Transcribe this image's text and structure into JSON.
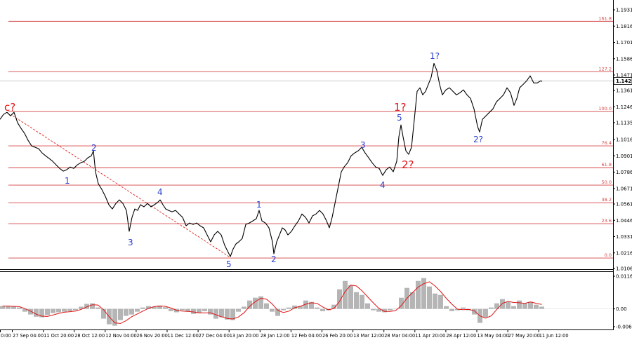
{
  "colors": {
    "price_line": "#000000",
    "fib_line": "#d64545",
    "fib_label": "#d64545",
    "current_price_line": "#c8c8c8",
    "trend_line": "#e02020",
    "histogram": "#b5b5b5",
    "signal": "#e01414",
    "axis_text": "#000000",
    "wave_blue": "#2a3fcf",
    "wave_red": "#e01414"
  },
  "chart_data": {
    "type": "line",
    "title": "",
    "y_ticks": [
      "1.1931",
      "1.1816",
      "1.1701",
      "1.1586",
      "1.1471",
      "1.1361",
      "1.1246",
      "1.1135",
      "1.1016",
      "1.0901",
      "1.0786",
      "1.0671",
      "1.0561",
      "1.0446",
      "1.0331",
      "1.0216",
      "1.0106"
    ],
    "y_range": [
      1.0106,
      1.1931
    ],
    "current_price": "1.1429",
    "x_ticks": [
      "0:00",
      "27 Sep 04:00",
      "11 Oct 20:00",
      "28 Oct 12:00",
      "12 Nov 04:00",
      "26 Nov 20:00",
      "11 Dec 12:00",
      "27 Dec 04:00",
      "13 Jan 20:00",
      "28 Jan 12:00",
      "12 Feb 04:00",
      "26 Feb 20:00",
      "13 Mar 12:00",
      "28 Mar 04:00",
      "11 Apr 20:00",
      "28 Apr 12:00",
      "13 May 04:00",
      "27 May 20:00",
      "11 Jun 12:00"
    ],
    "series": [
      {
        "values": [
          1.1158,
          1.1193,
          1.1208,
          1.1183,
          1.1208,
          1.1134,
          1.1094,
          1.1059,
          1.101,
          1.0971,
          1.0961,
          1.0951,
          1.0921,
          1.0901,
          1.0882,
          1.0862,
          1.0837,
          1.0812,
          1.0793,
          1.0803,
          1.0822,
          1.0812,
          1.0837,
          1.0852,
          1.0862,
          1.0887,
          1.0901,
          1.0936,
          1.0788,
          1.0704,
          1.0664,
          1.0615,
          1.0556,
          1.0526,
          1.0565,
          1.059,
          1.0565,
          1.0516,
          1.0368,
          1.0467,
          1.0526,
          1.0516,
          1.0556,
          1.0541,
          1.0565,
          1.0541,
          1.0556,
          1.0575,
          1.059,
          1.0556,
          1.0526,
          1.0516,
          1.0506,
          1.0516,
          1.0491,
          1.0467,
          1.0407,
          1.0427,
          1.0417,
          1.0427,
          1.0407,
          1.0393,
          1.0343,
          1.0294,
          1.0343,
          1.0368,
          1.0343,
          1.0269,
          1.022,
          1.019,
          1.0244,
          1.0279,
          1.0294,
          1.0318,
          1.0417,
          1.0427,
          1.0442,
          1.0457,
          1.0516,
          1.0442,
          1.0427,
          1.0393,
          1.0294,
          1.021,
          1.0294,
          1.0343,
          1.0393,
          1.0378,
          1.0343,
          1.0368,
          1.0407,
          1.0442,
          1.0491,
          1.0467,
          1.0427,
          1.0477,
          1.0491,
          1.0516,
          1.0491,
          1.0442,
          1.0393,
          1.0467,
          1.059,
          1.0689,
          1.0788,
          1.0822,
          1.0852,
          1.0901,
          1.0921,
          1.0936,
          1.0961,
          1.0921,
          1.0887,
          1.0852,
          1.0822,
          1.0812,
          1.0763,
          1.0803,
          1.0822,
          1.0788,
          1.0862,
          1.1035,
          1.1119,
          1.1035,
          1.0936,
          1.0911,
          1.0961,
          1.1158,
          1.1356,
          1.1381,
          1.1331,
          1.1356,
          1.1405,
          1.1455,
          1.1553,
          1.1504,
          1.1405,
          1.1331,
          1.1366,
          1.1381,
          1.1356,
          1.1331,
          1.1346,
          1.1366,
          1.1331,
          1.1306,
          1.1232,
          1.1109,
          1.1069,
          1.1158,
          1.1183,
          1.1208,
          1.1232,
          1.1282,
          1.1306,
          1.1331,
          1.1381,
          1.1346,
          1.1257,
          1.1306,
          1.1381,
          1.1405,
          1.143,
          1.1465,
          1.1415,
          1.1415,
          1.143,
          1.1425
        ]
      }
    ],
    "fibonacci": [
      {
        "label": "161.8",
        "price": 1.185
      },
      {
        "label": "127.2",
        "price": 1.1494
      },
      {
        "label": "100.0",
        "price": 1.1213
      },
      {
        "label": "76.4",
        "price": 1.0971
      },
      {
        "label": "61.8",
        "price": 1.0817
      },
      {
        "label": "50.0",
        "price": 1.0694
      },
      {
        "label": "38.2",
        "price": 1.057
      },
      {
        "label": "23.6",
        "price": 1.0422
      },
      {
        "label": "0.0",
        "price": 1.018
      }
    ],
    "wave_labels": [
      {
        "text": "c?",
        "color": "red"
      },
      {
        "text": "1",
        "color": "blue"
      },
      {
        "text": "2",
        "color": "blue"
      },
      {
        "text": "3",
        "color": "blue"
      },
      {
        "text": "4",
        "color": "blue"
      },
      {
        "text": "5",
        "color": "blue"
      },
      {
        "text": "1",
        "color": "blue"
      },
      {
        "text": "2",
        "color": "blue"
      },
      {
        "text": "3",
        "color": "blue"
      },
      {
        "text": "4",
        "color": "blue"
      },
      {
        "text": "5",
        "color": "blue"
      },
      {
        "text": "1?",
        "color": "red"
      },
      {
        "text": "2?",
        "color": "red"
      },
      {
        "text": "1?",
        "color": "blue"
      },
      {
        "text": "2?",
        "color": "blue"
      }
    ],
    "oscillator": {
      "type": "bar",
      "y_ticks": [
        "0.01168",
        "0.00",
        "-0.00635"
      ],
      "y_range": [
        -0.00635,
        0.01168
      ],
      "histogram": [
        0.001,
        0.001,
        0.0008,
        0.0005,
        -0.001,
        -0.002,
        -0.0028,
        -0.003,
        -0.0022,
        -0.0015,
        -0.0012,
        -0.001,
        -0.0008,
        -0.0005,
        0.0008,
        0.0018,
        0.002,
        0.0005,
        -0.0035,
        -0.0055,
        -0.006,
        -0.004,
        -0.0025,
        -0.002,
        -0.001,
        0.0005,
        0.001,
        0.0008,
        0.0012,
        0.0006,
        -0.0008,
        -0.0012,
        -0.0005,
        -0.001,
        -0.0018,
        -0.0015,
        -0.0008,
        -0.002,
        -0.0035,
        -0.003,
        -0.0038,
        -0.004,
        -0.001,
        0.0008,
        0.003,
        0.004,
        0.0045,
        0.002,
        -0.001,
        -0.0025,
        -0.0005,
        0.0005,
        0.0012,
        0.001,
        0.003,
        0.0025,
        0.0005,
        -0.0008,
        -0.0005,
        0.0015,
        0.007,
        0.01,
        0.0085,
        0.006,
        0.005,
        0.002,
        -0.0005,
        -0.001,
        -0.0012,
        -0.0005,
        0.0,
        0.004,
        0.0075,
        0.006,
        0.01,
        0.011,
        0.008,
        0.0055,
        0.005,
        0.001,
        -0.0008,
        -0.0005,
        0.0005,
        -0.0005,
        -0.002,
        -0.005,
        -0.003,
        0.0005,
        0.002,
        0.0035,
        0.0025,
        0.001,
        0.003,
        0.002,
        0.0025,
        0.0015,
        0.0008
      ],
      "signal": [
        0.001,
        0.001,
        0.0009,
        0.0008,
        0.0001,
        -0.0008,
        -0.0019,
        -0.0026,
        -0.0027,
        -0.0022,
        -0.0016,
        -0.0012,
        -0.001,
        -0.0008,
        -0.0002,
        0.0007,
        0.0015,
        0.0014,
        -0.0003,
        -0.0028,
        -0.005,
        -0.0052,
        -0.0042,
        -0.0028,
        -0.0018,
        -0.0008,
        0.0002,
        0.0008,
        0.001,
        0.0009,
        0.0003,
        -0.0005,
        -0.0008,
        -0.0009,
        -0.0011,
        -0.0014,
        -0.0014,
        -0.0014,
        -0.0021,
        -0.0028,
        -0.0034,
        -0.0036,
        -0.0029,
        -0.0014,
        0.0009,
        0.0026,
        0.0038,
        0.0035,
        0.0018,
        -0.0005,
        -0.0013,
        -0.0008,
        0.0004,
        0.0009,
        0.0017,
        0.0022,
        0.002,
        0.0007,
        -0.0003,
        0.0001,
        0.0027,
        0.0062,
        0.0085,
        0.0082,
        0.0065,
        0.0043,
        0.0022,
        0.0002,
        -0.0009,
        -0.0009,
        -0.0006,
        0.0012,
        0.0038,
        0.0058,
        0.0078,
        0.009,
        0.0097,
        0.0082,
        0.0062,
        0.0038,
        0.0017,
        -0.0001,
        -0.0003,
        -0.0002,
        -0.0007,
        -0.0025,
        -0.0033,
        -0.0025,
        -0.0002,
        0.002,
        0.0027,
        0.0023,
        0.0022,
        0.002,
        0.0025,
        0.002,
        0.0016
      ]
    }
  }
}
